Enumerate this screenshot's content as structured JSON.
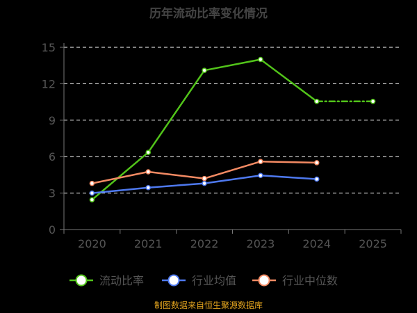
{
  "chart_data": {
    "type": "line",
    "title": "历年流动比率变化情况",
    "xlabel": "",
    "ylabel": "",
    "categories": [
      "2020",
      "2021",
      "2022",
      "2023",
      "2024",
      "2025"
    ],
    "yticks": [
      "0",
      "3",
      "6",
      "9",
      "12",
      "15"
    ],
    "ylim": [
      0,
      15
    ],
    "grid": true,
    "legend_position": "bottom",
    "series": [
      {
        "name": "流动比率",
        "color": "#52c41a",
        "values": [
          2.45,
          6.35,
          13.1,
          14.0,
          10.55,
          10.55
        ],
        "projected_from_index": 4
      },
      {
        "name": "行业均值",
        "color": "#4e79ef",
        "values": [
          3.0,
          3.45,
          3.8,
          4.45,
          4.15,
          null
        ]
      },
      {
        "name": "行业中位数",
        "color": "#f38a63",
        "values": [
          3.8,
          4.75,
          4.2,
          5.6,
          5.5,
          null
        ]
      }
    ],
    "source": "制图数据来自恒生聚源数据库"
  }
}
